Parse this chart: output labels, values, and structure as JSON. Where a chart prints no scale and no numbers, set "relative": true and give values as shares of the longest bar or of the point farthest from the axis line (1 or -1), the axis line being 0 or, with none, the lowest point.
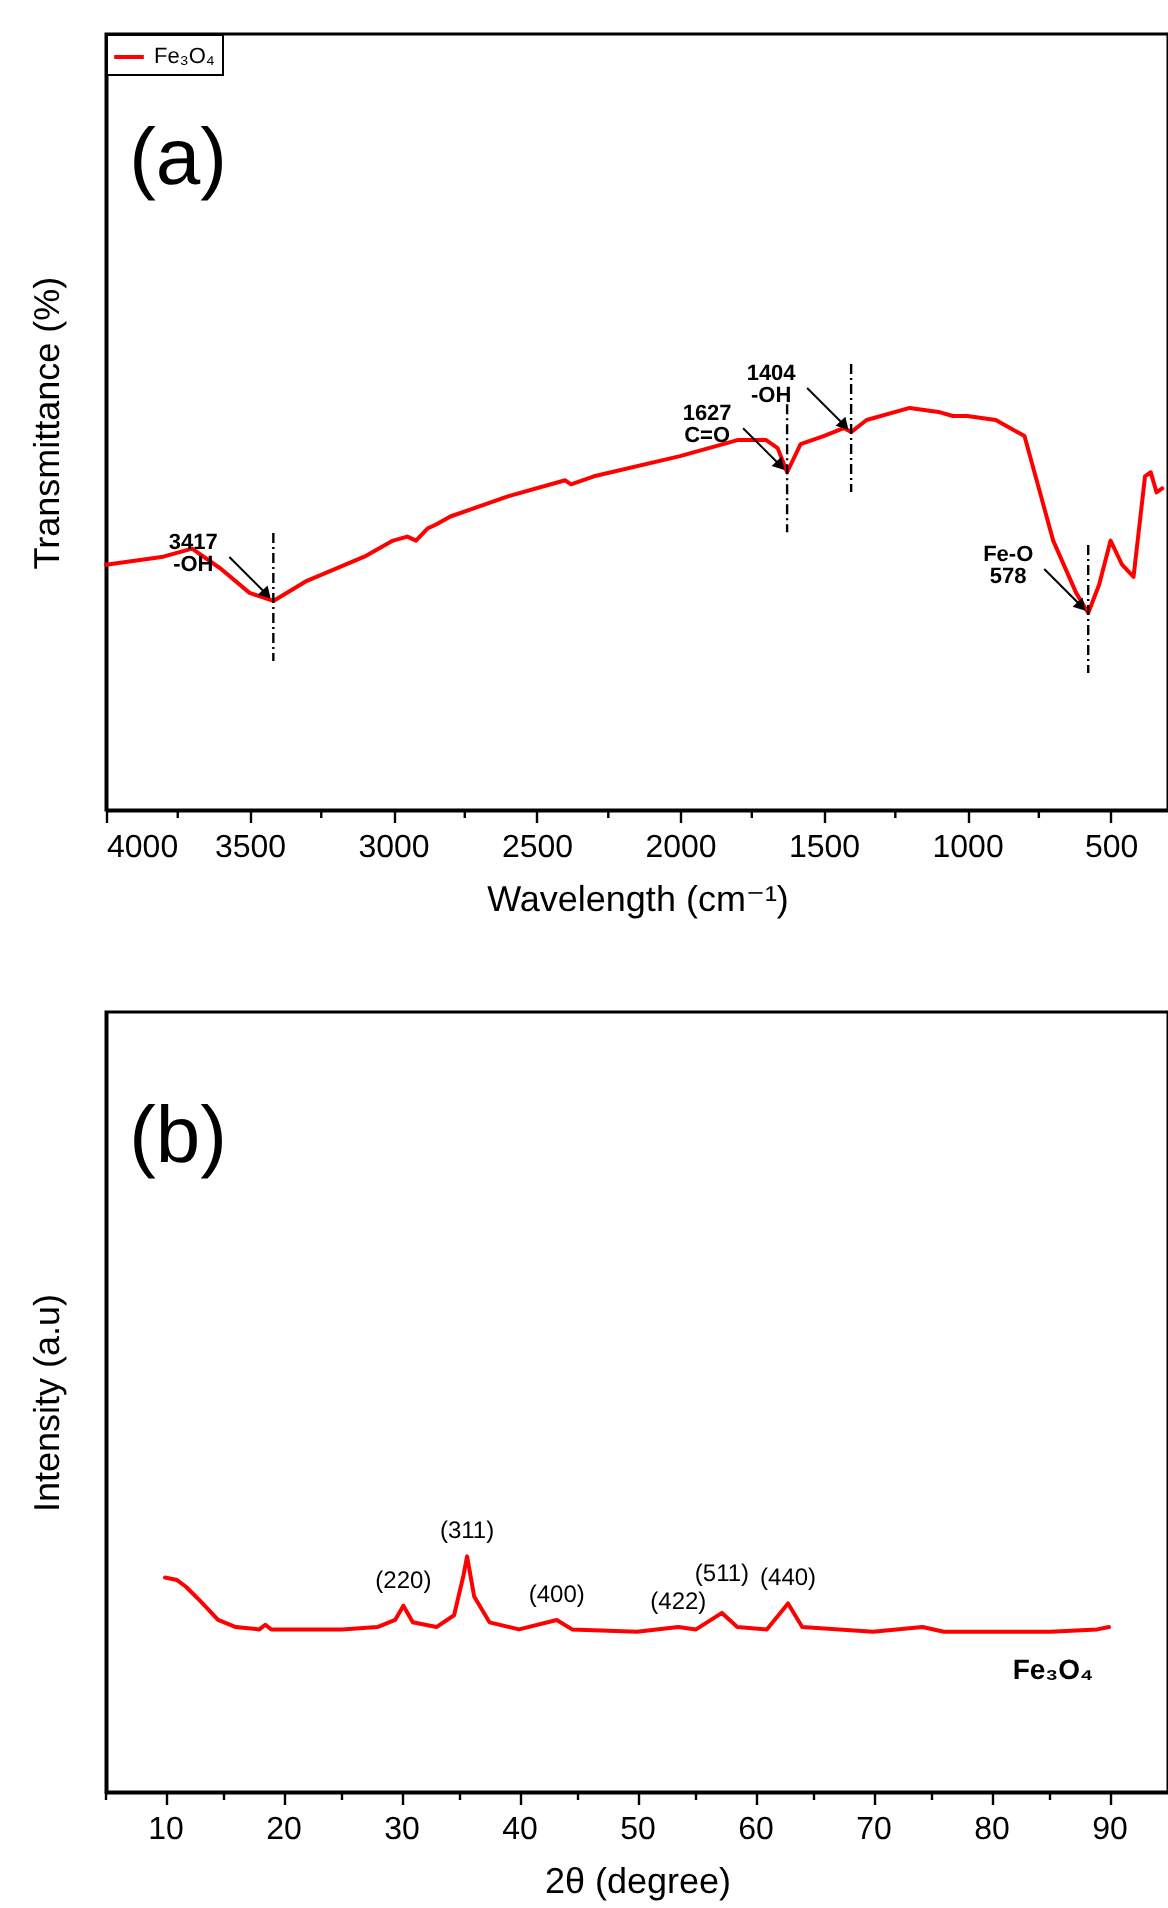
{
  "chart_data": [
    {
      "type": "line",
      "title": "(a)",
      "xlabel": "Wavelength (cm⁻¹)",
      "ylabel": "Transmittance (%)",
      "relative": true,
      "legend": "top left",
      "grid": false,
      "x": [
        4000,
        3800,
        3700,
        3600,
        3500,
        3417,
        3300,
        3100,
        3000,
        2950,
        2920,
        2880,
        2850,
        2800,
        2600,
        2400,
        2380,
        2300,
        2000,
        1800,
        1700,
        1660,
        1627,
        1580,
        1500,
        1430,
        1404,
        1350,
        1200,
        1100,
        1050,
        1000,
        900,
        800,
        750,
        700,
        620,
        578,
        540,
        500,
        460,
        420,
        380,
        360,
        340,
        320
      ],
      "series": [
        {
          "name": "Fe₃O₄",
          "color": "#ff0000",
          "values": [
            0.61,
            0.63,
            0.65,
            0.6,
            0.54,
            0.52,
            0.57,
            0.63,
            0.67,
            0.68,
            0.67,
            0.7,
            0.71,
            0.73,
            0.78,
            0.82,
            0.81,
            0.83,
            0.88,
            0.92,
            0.92,
            0.9,
            0.84,
            0.91,
            0.93,
            0.95,
            0.94,
            0.97,
            1,
            0.99,
            0.98,
            0.98,
            0.97,
            0.93,
            0.8,
            0.67,
            0.54,
            0.49,
            0.56,
            0.67,
            0.61,
            0.58,
            0.83,
            0.84,
            0.79,
            0.8
          ]
        }
      ],
      "xlim": [
        4000,
        300
      ],
      "xticks": [
        4000,
        {
          "value": 3750,
          "label": null
        },
        3500,
        {
          "value": 3250,
          "label": null
        },
        3000,
        {
          "value": 2750,
          "label": null
        },
        2500,
        {
          "value": 2250,
          "label": null
        },
        2000,
        {
          "value": 1750,
          "label": null
        },
        1500,
        {
          "value": 1250,
          "label": null
        },
        1000,
        {
          "value": 750,
          "label": null
        },
        500
      ],
      "annotations": [
        {
          "text": "3417\n-OH",
          "x": 3417,
          "y": 0.52
        },
        {
          "text": "1627\nC=O",
          "x": 1627,
          "y": 0.84
        },
        {
          "text": "1404\n-OH",
          "x": 1404,
          "y": 0.94
        },
        {
          "text": "Fe-O\n578",
          "x": 578,
          "y": 0.49
        }
      ]
    },
    {
      "type": "line",
      "title": "(b)",
      "xlabel": "2θ (degree)",
      "ylabel": "Intensity (a.u)",
      "relative": true,
      "grid": false,
      "x": [
        10,
        11,
        11.8,
        13,
        14.5,
        16,
        18,
        18.5,
        19,
        25,
        28,
        29.5,
        30.2,
        31,
        33,
        34.5,
        35.3,
        35.6,
        36.2,
        37.5,
        40,
        43.2,
        44.5,
        50,
        53.5,
        55,
        57.2,
        58.5,
        61,
        62.8,
        64,
        70,
        74.2,
        76,
        85,
        89,
        90
      ],
      "series": [
        {
          "name": "Fe₃O₄",
          "color": "#ff0000",
          "values": [
            0.91,
            0.9,
            0.87,
            0.81,
            0.73,
            0.7,
            0.69,
            0.71,
            0.69,
            0.69,
            0.7,
            0.73,
            0.79,
            0.72,
            0.7,
            0.75,
            0.92,
            1,
            0.83,
            0.72,
            0.69,
            0.73,
            0.69,
            0.68,
            0.7,
            0.69,
            0.76,
            0.7,
            0.69,
            0.8,
            0.7,
            0.68,
            0.7,
            0.68,
            0.68,
            0.69,
            0.7
          ]
        }
      ],
      "xlim": [
        5,
        95
      ],
      "xticks": [
        {
          "value": 5,
          "label": null
        },
        10,
        {
          "value": 15,
          "label": null
        },
        20,
        {
          "value": 25,
          "label": null
        },
        30,
        {
          "value": 35,
          "label": null
        },
        40,
        {
          "value": 45,
          "label": null
        },
        50,
        {
          "value": 55,
          "label": null
        },
        60,
        {
          "value": 65,
          "label": null
        },
        70,
        {
          "value": 75,
          "label": null
        },
        80,
        {
          "value": 85,
          "label": null
        },
        90
      ],
      "annotations": [
        {
          "text": "(220)",
          "x": 30.2,
          "y": 0.79
        },
        {
          "text": "(311)",
          "x": 35.6,
          "y": 1
        },
        {
          "text": "(400)",
          "x": 43.2,
          "y": 0.73
        },
        {
          "text": "(422)",
          "x": 53.5,
          "y": 0.7
        },
        {
          "text": "(511)",
          "x": 57.2,
          "y": 0.76
        },
        {
          "text": "(440)",
          "x": 62.8,
          "y": 0.8
        }
      ]
    }
  ]
}
